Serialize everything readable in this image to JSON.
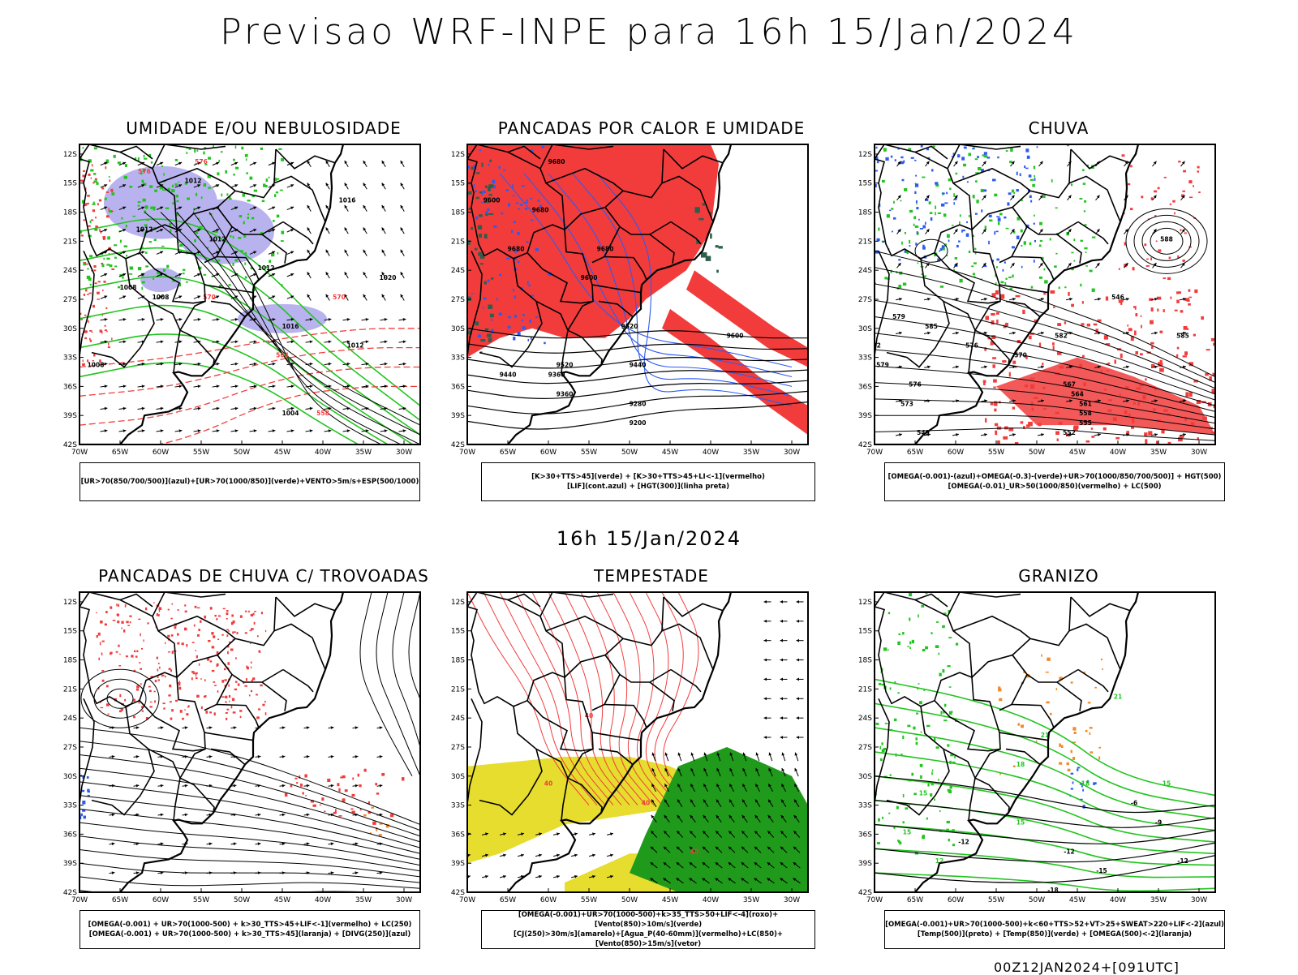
{
  "page": {
    "title": "Previsao WRF-INPE  para 16h 15/Jan/2024",
    "middle_date": "16h 15/Jan/2024",
    "footer": "00Z12JAN2024+[091UTC]"
  },
  "axes": {
    "lat_labels": [
      "12S",
      "15S",
      "18S",
      "21S",
      "24S",
      "27S",
      "30S",
      "33S",
      "36S",
      "39S",
      "42S"
    ],
    "lon_labels": [
      "70W",
      "65W",
      "60W",
      "55W",
      "50W",
      "45W",
      "40W",
      "35W",
      "30W"
    ]
  },
  "colors": {
    "red": "#f23c3c",
    "green": "#22c41f",
    "blue": "#2d5bf0",
    "lavender": "#b8b3ee",
    "yellow": "#e6dd2e",
    "orange": "#f08a2a",
    "darkgreen": "#2e5e4c",
    "black": "#000000"
  },
  "panels": [
    {
      "id": "umidade",
      "title": "UMIDADE E/OU NEBULOSIDADE",
      "legend": [
        "[UR>70(850/700/500)](azul)+[UR>70(1000/850)](verde)+VENTO>5m/s+ESP(500/1000)"
      ],
      "contour_labels": [
        "1012",
        "1012",
        "1008",
        "1012",
        "1008",
        "1016",
        "1012",
        "1016",
        "1020",
        "1012",
        "1008",
        "1004",
        "576",
        "570",
        "564",
        "558",
        "576",
        "570"
      ]
    },
    {
      "id": "pancadas-calor",
      "title": "PANCADAS POR CALOR E UMIDADE",
      "legend": [
        "[K>30+TTS>45](verde) + [K>30+TTS>45+LI<-1](vermelho)",
        "[LIF](cont.azul) + [HGT(300)](linha preta)"
      ],
      "contour_labels": [
        "9680",
        "9600",
        "9680",
        "9680",
        "9680",
        "9600",
        "9520",
        "9520",
        "9440",
        "9440",
        "9360",
        "9360",
        "9280",
        "9200",
        "9600"
      ]
    },
    {
      "id": "chuva",
      "title": "CHUVA",
      "legend": [
        "[OMEGA(-0.001)-(azul)+OMEGA(-0.3)-(verde)+UR>70(1000/850/700/500)] + HGT(500)",
        "[OMEGA(-0.01)_UR>50(1000/850)(vermelho) + LC(500)"
      ],
      "contour_labels": [
        "588",
        "585",
        "582",
        "579",
        "576",
        "573",
        "570",
        "567",
        "564",
        "561",
        "558",
        "555",
        "552",
        "549",
        "546",
        "585",
        "582",
        "579",
        "576"
      ]
    },
    {
      "id": "pancadas-trovoadas",
      "title": "PANCADAS DE CHUVA C/ TROVOADAS",
      "legend": [
        "[OMEGA(-0.001) + UR>70(1000-500) + k>30_TTS>45+LIF<-1](vermelho) + LC(250)",
        "[OMEGA(-0.001) + UR>70(1000-500) + k>30_TTS>45](laranja) + [DIVG(250)](azul)"
      ],
      "contour_labels": []
    },
    {
      "id": "tempestade",
      "title": "TEMPESTADE",
      "legend": [
        "[OMEGA(-0.001)+UR>70(1000-500)+k>35_TTS>50+LIF<-4](roxo)+[Vento(850)>10m/s](verde)",
        "[CJ(250)>30m/s](amarelo)+[Agua_P(40-60mm)](vermelho)+LC(850)+[Vento(850)>15m/s](vetor)"
      ],
      "contour_labels": [
        "40",
        "40",
        "40",
        "40"
      ]
    },
    {
      "id": "granizo",
      "title": "GRANIZO",
      "legend": [
        "[OMEGA(-0.001)+UR>70(1000-500)+k<60+TTS>52+VT>25+SWEAT>220+LIF<-2](azul)",
        "[Temp(500)](preto) + [Temp(850)](verde) + [OMEGA(500)<-2](laranja)"
      ],
      "contour_labels": [
        "-6",
        "-12",
        "-15",
        "-18",
        "-12",
        "-9",
        "-12",
        "15",
        "18",
        "15",
        "21",
        "18",
        "15",
        "12",
        "15",
        "21"
      ]
    }
  ]
}
